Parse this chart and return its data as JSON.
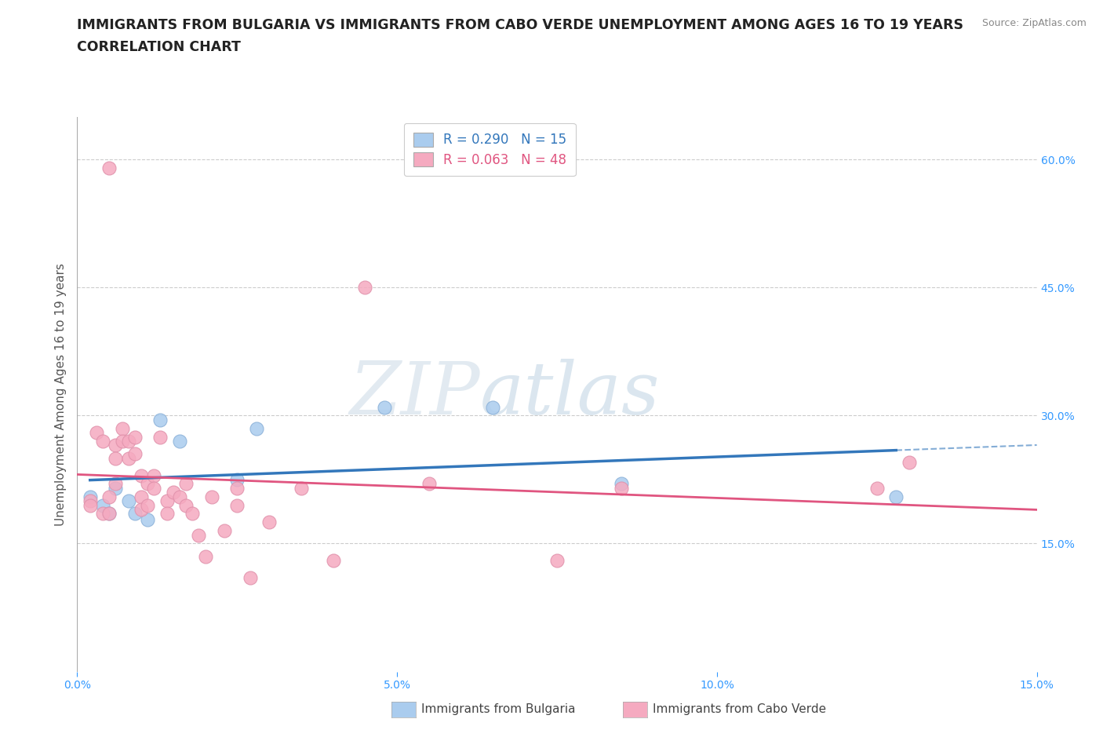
{
  "title_line1": "IMMIGRANTS FROM BULGARIA VS IMMIGRANTS FROM CABO VERDE UNEMPLOYMENT AMONG AGES 16 TO 19 YEARS",
  "title_line2": "CORRELATION CHART",
  "source": "Source: ZipAtlas.com",
  "ylabel": "Unemployment Among Ages 16 to 19 years",
  "xlim": [
    0.0,
    0.15
  ],
  "ylim": [
    0.0,
    0.65
  ],
  "xticks": [
    0.0,
    0.05,
    0.1,
    0.15
  ],
  "xtick_labels": [
    "0.0%",
    "5.0%",
    "10.0%",
    "15.0%"
  ],
  "yticks": [
    0.0,
    0.15,
    0.3,
    0.45,
    0.6
  ],
  "ytick_labels": [
    "",
    "15.0%",
    "30.0%",
    "45.0%",
    "60.0%"
  ],
  "bulgaria_R": 0.29,
  "bulgaria_N": 15,
  "caboverde_R": 0.063,
  "caboverde_N": 48,
  "bulgaria_color": "#aaccee",
  "caboverde_color": "#f5aac0",
  "bulgaria_line_color": "#3377bb",
  "caboverde_line_color": "#e05580",
  "watermark_text": "ZIPatlas",
  "bulgaria_x": [
    0.002,
    0.004,
    0.005,
    0.006,
    0.008,
    0.009,
    0.011,
    0.013,
    0.016,
    0.025,
    0.028,
    0.048,
    0.065,
    0.085,
    0.128
  ],
  "bulgaria_y": [
    0.205,
    0.195,
    0.185,
    0.215,
    0.2,
    0.185,
    0.178,
    0.295,
    0.27,
    0.225,
    0.285,
    0.31,
    0.31,
    0.22,
    0.205
  ],
  "caboverde_x": [
    0.002,
    0.002,
    0.003,
    0.004,
    0.004,
    0.005,
    0.005,
    0.005,
    0.006,
    0.006,
    0.006,
    0.007,
    0.007,
    0.008,
    0.008,
    0.009,
    0.009,
    0.01,
    0.01,
    0.01,
    0.011,
    0.011,
    0.012,
    0.012,
    0.013,
    0.014,
    0.014,
    0.015,
    0.016,
    0.017,
    0.017,
    0.018,
    0.019,
    0.02,
    0.021,
    0.023,
    0.025,
    0.025,
    0.027,
    0.03,
    0.035,
    0.04,
    0.045,
    0.055,
    0.075,
    0.085,
    0.125,
    0.13
  ],
  "caboverde_y": [
    0.2,
    0.195,
    0.28,
    0.27,
    0.185,
    0.59,
    0.205,
    0.185,
    0.265,
    0.25,
    0.22,
    0.285,
    0.27,
    0.27,
    0.25,
    0.275,
    0.255,
    0.23,
    0.205,
    0.19,
    0.22,
    0.195,
    0.23,
    0.215,
    0.275,
    0.2,
    0.185,
    0.21,
    0.205,
    0.22,
    0.195,
    0.185,
    0.16,
    0.135,
    0.205,
    0.165,
    0.215,
    0.195,
    0.11,
    0.175,
    0.215,
    0.13,
    0.45,
    0.22,
    0.13,
    0.215,
    0.215,
    0.245
  ],
  "grid_color": "#cccccc",
  "bg_color": "#ffffff",
  "title_fontsize": 12.5,
  "axis_label_fontsize": 11,
  "tick_fontsize": 10,
  "legend_fontsize": 12
}
